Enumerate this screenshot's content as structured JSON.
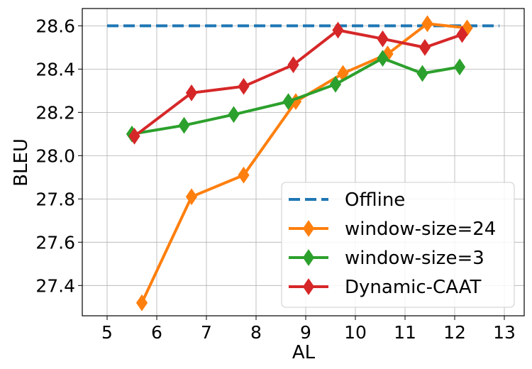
{
  "chart_data": {
    "type": "line",
    "xlabel": "AL",
    "ylabel": "BLEU",
    "xlim": [
      4.5,
      13.4
    ],
    "ylim": [
      27.26,
      28.68
    ],
    "xticks": [
      5,
      6,
      7,
      8,
      9,
      10,
      11,
      12,
      13
    ],
    "yticks": [
      27.4,
      27.6,
      27.8,
      28.0,
      28.2,
      28.4,
      28.6
    ],
    "xtick_labels": [
      "5",
      "6",
      "7",
      "8",
      "9",
      "10",
      "11",
      "12",
      "13"
    ],
    "ytick_labels": [
      "27.4",
      "27.6",
      "27.8",
      "28.0",
      "28.2",
      "28.4",
      "28.6"
    ],
    "grid": true,
    "legend_position": "lower-right",
    "series": [
      {
        "name": "Offline",
        "color": "#1f77b4",
        "style": "dashed",
        "marker": "none",
        "x": [
          5.0,
          12.9
        ],
        "y": [
          28.6,
          28.6
        ]
      },
      {
        "name": "window-size=24",
        "color": "#ff7f0e",
        "style": "solid",
        "marker": "thin-diamond",
        "x": [
          5.7,
          6.7,
          7.75,
          8.8,
          9.75,
          10.65,
          11.45,
          12.25
        ],
        "y": [
          27.32,
          27.81,
          27.91,
          28.25,
          28.38,
          28.47,
          28.61,
          28.59
        ]
      },
      {
        "name": "window-size=3",
        "color": "#2ca02c",
        "style": "solid",
        "marker": "thin-diamond",
        "x": [
          5.5,
          6.55,
          7.55,
          8.65,
          9.6,
          10.55,
          11.35,
          12.1
        ],
        "y": [
          28.1,
          28.14,
          28.19,
          28.25,
          28.33,
          28.45,
          28.38,
          28.41
        ]
      },
      {
        "name": "Dynamic-CAAT",
        "color": "#d62728",
        "style": "solid",
        "marker": "thin-diamond",
        "x": [
          5.55,
          6.7,
          7.75,
          8.75,
          9.65,
          10.55,
          11.4,
          12.15
        ],
        "y": [
          28.09,
          28.29,
          28.32,
          28.42,
          28.58,
          28.54,
          28.5,
          28.56
        ]
      }
    ]
  }
}
